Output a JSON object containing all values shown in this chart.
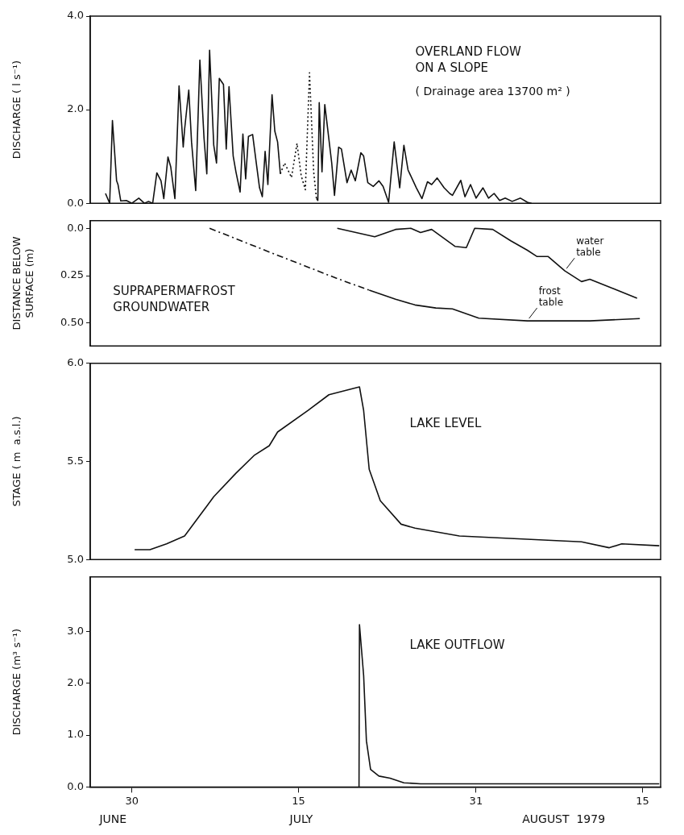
{
  "chart_data": [
    {
      "type": "line",
      "title": "OVERLAND FLOW ON A SLOPE",
      "subtitle": "( Drainage area 13700 m² )",
      "ylabel": "DISCHARGE ( l s⁻¹)",
      "xlim": [
        "1979-06-26T06:00",
        "1979-08-16T15:00"
      ],
      "ylim": [
        0,
        4
      ],
      "yticks": [
        {
          "value": 0,
          "label": "0.0"
        },
        {
          "value": 2,
          "label": "2.0"
        },
        {
          "value": 4,
          "label": "4.0"
        }
      ],
      "tick_labels": "y",
      "series": [
        {
          "color": "#111111",
          "x": [
            "1979-06-27T15:00",
            "1979-06-28T00:00",
            "1979-06-28T06:00",
            "1979-06-28T15:00",
            "1979-06-28T18:00",
            "1979-06-29T00:00",
            "1979-06-29T12:00",
            "1979-06-30T00:00",
            "1979-06-30T15:00",
            "1979-07-01T03:00",
            "1979-07-01T12:00",
            "1979-07-01T21:00",
            "1979-07-02T06:00",
            "1979-07-02T15:00",
            "1979-07-02T21:00",
            "1979-07-03T06:00",
            "1979-07-03T12:00",
            "1979-07-03T21:00",
            "1979-07-04T06:00",
            "1979-07-04T15:00",
            "1979-07-04T18:00",
            "1979-07-05T03:00",
            "1979-07-05T09:00",
            "1979-07-05T18:00",
            "1979-07-06T03:00",
            "1979-07-06T12:00",
            "1979-07-06T18:00",
            "1979-07-07T00:00",
            "1979-07-07T09:00",
            "1979-07-07T15:00",
            "1979-07-07T21:00",
            "1979-07-08T06:00",
            "1979-07-08T12:00",
            "1979-07-08T18:00",
            "1979-07-09T03:00",
            "1979-07-09T09:00",
            "1979-07-09T18:00",
            "1979-07-10T00:00",
            "1979-07-10T06:00",
            "1979-07-10T12:00",
            "1979-07-10T21:00",
            "1979-07-11T06:00",
            "1979-07-11T12:00",
            "1979-07-11T18:00",
            "1979-07-12T00:00",
            "1979-07-12T06:00",
            "1979-07-12T15:00",
            "1979-07-12T21:00",
            "1979-07-13T03:00",
            "1979-07-13T09:00"
          ],
          "values": [
            0.21,
            0,
            1.77,
            0.48,
            0.4,
            0.05,
            0.06,
            0,
            0.11,
            0,
            0.04,
            0,
            0.65,
            0.48,
            0.1,
            0.99,
            0.78,
            0.1,
            2.51,
            1.2,
            1.58,
            2.42,
            1.31,
            0.27,
            3.06,
            1.39,
            0.63,
            3.27,
            1.24,
            0.86,
            2.67,
            2.54,
            1.16,
            2.49,
            1.01,
            0.67,
            0.24,
            1.48,
            0.52,
            1.43,
            1.47,
            0.78,
            0.33,
            0.14,
            1.11,
            0.4,
            2.32,
            1.54,
            1.31,
            0.63
          ]
        },
        {
          "color": "#111111",
          "line_style": "dotted",
          "x": [
            "1979-07-13T09:00",
            "1979-07-13T18:00",
            "1979-07-14T00:00",
            "1979-07-14T09:00",
            "1979-07-14T21:00",
            "1979-07-15T06:00",
            "1979-07-15T15:00",
            "1979-07-16T00:00",
            "1979-07-16T09:00",
            "1979-07-16T15:00"
          ],
          "values": [
            0.63,
            0.86,
            0.74,
            0.55,
            1.28,
            0.59,
            0.29,
            2.79,
            0.67,
            0.1
          ]
        },
        {
          "color": "#111111",
          "x": [
            "1979-07-16T15:00",
            "1979-07-16T18:00",
            "1979-07-16T21:00",
            "1979-07-17T03:00",
            "1979-07-17T09:00",
            "1979-07-18T00:00",
            "1979-07-18T06:00",
            "1979-07-18T15:00",
            "1979-07-18T21:00",
            "1979-07-19T09:00",
            "1979-07-19T18:00",
            "1979-07-20T03:00",
            "1979-07-20T15:00",
            "1979-07-20T21:00",
            "1979-07-21T06:00",
            "1979-07-21T18:00",
            "1979-07-22T06:00",
            "1979-07-22T15:00",
            "1979-07-23T03:00",
            "1979-07-23T15:00",
            "1979-07-24T03:00",
            "1979-07-24T12:00",
            "1979-07-24T21:00",
            "1979-07-25T15:00",
            "1979-07-26T03:00",
            "1979-07-26T15:00",
            "1979-07-27T00:00",
            "1979-07-27T12:00",
            "1979-07-28T03:00",
            "1979-07-28T15:00",
            "1979-07-28T21:00",
            "1979-07-29T15:00",
            "1979-07-30T00:00",
            "1979-07-30T12:00",
            "1979-07-31T00:00",
            "1979-07-31T15:00",
            "1979-08-01T03:00",
            "1979-08-01T15:00",
            "1979-08-02T03:00",
            "1979-08-02T15:00",
            "1979-08-03T06:00",
            "1979-08-04T00:00",
            "1979-08-04T15:00",
            "1979-08-05T00:00"
          ],
          "values": [
            0.1,
            0.06,
            2.15,
            0.67,
            2.11,
            0.86,
            0.17,
            1.2,
            1.16,
            0.44,
            0.71,
            0.48,
            1.08,
            1.01,
            0.44,
            0.36,
            0.48,
            0.36,
            0.02,
            1.31,
            0.33,
            1.24,
            0.71,
            0.33,
            0.1,
            0.46,
            0.4,
            0.54,
            0.33,
            0.21,
            0.17,
            0.49,
            0.14,
            0.4,
            0.11,
            0.33,
            0.11,
            0.21,
            0.06,
            0.11,
            0.04,
            0.11,
            0.02,
            0
          ]
        }
      ]
    },
    {
      "type": "line",
      "title": "SUPRAPERMAFROST GROUNDWATER",
      "ylabel": "DISTANCE BELOW SURFACE (m)",
      "xlim": [
        "1979-06-26T06:00",
        "1979-08-16T15:00"
      ],
      "ylim": [
        0.62,
        -0.04
      ],
      "yticks": [
        {
          "value": 0,
          "label": "0.0"
        },
        0.25,
        {
          "value": 0.5,
          "label": "0.50"
        }
      ],
      "tick_labels": "y",
      "series": [
        {
          "color": "#111111",
          "line_style": "dashed",
          "x": [
            "1979-07-07T00:00",
            "1979-07-12T09:00",
            "1979-07-18T12:00",
            "1979-07-21T09:00"
          ],
          "values": [
            0,
            0.125,
            0.265,
            0.326
          ]
        },
        {
          "name": "frost table",
          "color": "#111111",
          "x": [
            "1979-07-21T09:00",
            "1979-07-23T18:00",
            "1979-07-25T12:00",
            "1979-07-27T09:00",
            "1979-07-28T21:00",
            "1979-07-31T06:00",
            "1979-08-04T15:00",
            "1979-08-10T06:00",
            "1979-08-14T18:00"
          ],
          "values": [
            0.326,
            0.374,
            0.404,
            0.42,
            0.425,
            0.474,
            0.488,
            0.488,
            0.476
          ]
        },
        {
          "name": "water table",
          "color": "#111111",
          "x": [
            "1979-07-18T12:00",
            "1979-07-21T21:00",
            "1979-07-23T18:00",
            "1979-07-25T03:00",
            "1979-07-26T00:00",
            "1979-07-27T00:00",
            "1979-07-29T03:00",
            "1979-07-30T03:00",
            "1979-07-30T21:00",
            "1979-08-01T12:00",
            "1979-08-03T03:00",
            "1979-08-04T15:00",
            "1979-08-05T12:00",
            "1979-08-06T12:00",
            "1979-08-08T00:00",
            "1979-08-09T12:00",
            "1979-08-10T06:00",
            "1979-08-12T06:00",
            "1979-08-14T12:00"
          ],
          "values": [
            0,
            0.045,
            0.006,
            0,
            0.022,
            0.006,
            0.096,
            0.102,
            0,
            0.006,
            0.066,
            0.116,
            0.149,
            0.149,
            0.225,
            0.281,
            0.269,
            0.315,
            0.369
          ]
        }
      ]
    },
    {
      "type": "line",
      "title": "LAKE LEVEL",
      "ylabel": "STAGE ( m  a.s.l.)",
      "xlim": [
        "1979-06-26T06:00",
        "1979-08-16T15:00"
      ],
      "ylim": [
        5,
        6
      ],
      "yticks": [
        {
          "value": 5,
          "label": "5.0"
        },
        5.5,
        {
          "value": 6,
          "label": "6.0"
        }
      ],
      "tick_labels": "y",
      "series": [
        {
          "color": "#111111",
          "x": [
            "1979-06-30T06:00",
            "1979-07-01T15:00",
            "1979-07-03T03:00",
            "1979-07-04T18:00",
            "1979-07-07T09:00",
            "1979-07-09T09:00",
            "1979-07-11T00:00",
            "1979-07-12T09:00",
            "1979-07-13T03:00",
            "1979-07-15T21:00",
            "1979-07-17T18:00",
            "1979-07-20T12:00",
            "1979-07-20T21:00",
            "1979-07-21T09:00",
            "1979-07-22T09:00",
            "1979-07-24T06:00",
            "1979-07-25T12:00",
            "1979-07-29T12:00",
            "1979-08-09T12:00",
            "1979-08-12T00:00",
            "1979-08-13T03:00",
            "1979-08-16T12:00"
          ],
          "values": [
            5.05,
            5.05,
            5.08,
            5.12,
            5.32,
            5.44,
            5.53,
            5.58,
            5.65,
            5.76,
            5.84,
            5.88,
            5.76,
            5.46,
            5.3,
            5.18,
            5.16,
            5.12,
            5.09,
            5.06,
            5.08,
            5.07
          ]
        }
      ]
    },
    {
      "type": "line",
      "title": "LAKE OUTFLOW",
      "ylabel": "DISCHARGE (m³ s⁻¹)",
      "xlim": [
        "1979-06-26T06:00",
        "1979-08-16T15:00"
      ],
      "ylim": [
        0,
        4.05
      ],
      "yticks": [
        {
          "value": 0,
          "label": "0.0"
        },
        {
          "value": 1,
          "label": "1.0"
        },
        {
          "value": 2,
          "label": "2.0"
        },
        {
          "value": 3,
          "label": "3.0"
        }
      ],
      "xticks": [
        {
          "value": "1979-06-30",
          "label": "30"
        },
        {
          "value": "1979-07-15",
          "label": "15"
        },
        {
          "value": "1979-07-31",
          "label": "31"
        },
        {
          "value": "1979-08-15",
          "label": "15"
        }
      ],
      "annotations": [
        "JUNE",
        "JULY",
        "AUGUST  1979"
      ],
      "series": [
        {
          "color": "#111111",
          "x": [
            "1979-07-20T11:00",
            "1979-07-20T12:00",
            "1979-07-20T21:00",
            "1979-07-21T03:00",
            "1979-07-21T12:00",
            "1979-07-22T06:00",
            "1979-07-23T06:00",
            "1979-07-24T12:00",
            "1979-07-26T00:00",
            "1979-08-03T00:00",
            "1979-08-16T12:00"
          ],
          "values": [
            0,
            3.13,
            2.15,
            0.89,
            0.34,
            0.21,
            0.17,
            0.08,
            0.06,
            0.06,
            0.06
          ]
        }
      ]
    }
  ]
}
